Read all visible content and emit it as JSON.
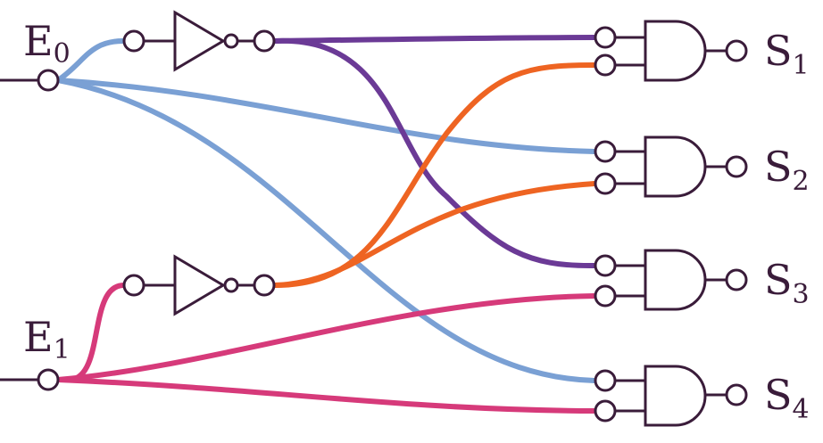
{
  "inputs": [
    {
      "letter": "E",
      "index": "0"
    },
    {
      "letter": "E",
      "index": "1"
    }
  ],
  "outputs": [
    {
      "letter": "S",
      "index": "1"
    },
    {
      "letter": "S",
      "index": "2"
    },
    {
      "letter": "S",
      "index": "3"
    },
    {
      "letter": "S",
      "index": "4"
    }
  ],
  "colors": {
    "outline": "#3a1c3a",
    "e0_wire": "#7aa0d4",
    "e1_wire": "#d63a7a",
    "not_e0_wire": "#6b3a96",
    "not_e1_wire": "#ee6422"
  }
}
